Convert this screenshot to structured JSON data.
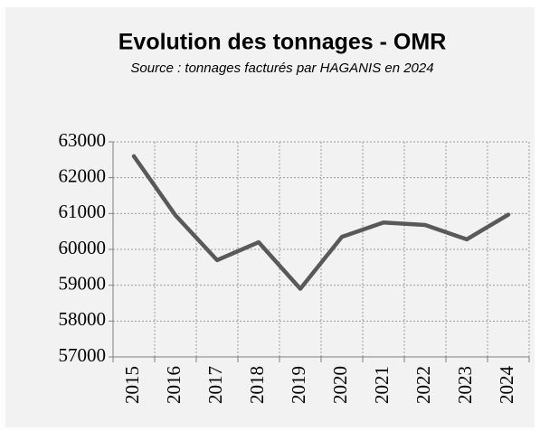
{
  "chart_data": {
    "type": "line",
    "title": "Evolution des tonnages - OMR",
    "subtitle": "Source : tonnages facturés par HAGANIS en 2024",
    "categories": [
      "2015",
      "2016",
      "2017",
      "2018",
      "2019",
      "2020",
      "2021",
      "2022",
      "2023",
      "2024"
    ],
    "values": [
      62600,
      60950,
      59700,
      60200,
      58900,
      60350,
      60750,
      60680,
      60280,
      60970
    ],
    "color": "#595959",
    "ylim": [
      57000,
      63000
    ],
    "yticks": [
      57000,
      58000,
      59000,
      60000,
      61000,
      62000,
      63000
    ],
    "grid": true
  }
}
